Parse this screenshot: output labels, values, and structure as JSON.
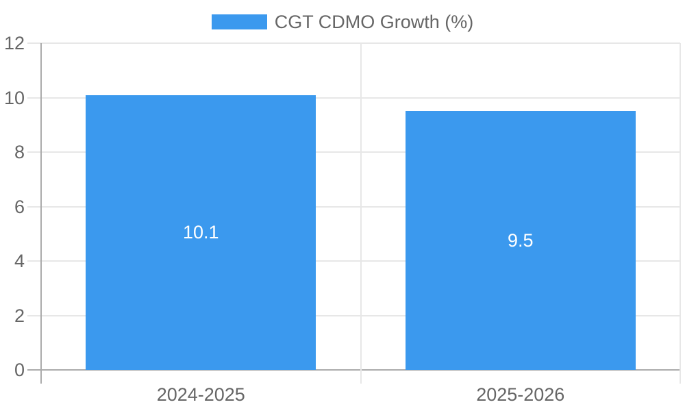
{
  "chart_data": {
    "type": "bar",
    "categories": [
      "2024-2025",
      "2025-2026"
    ],
    "series": [
      {
        "name": "CGT CDMO Growth (%)",
        "values": [
          10.1,
          9.5
        ]
      }
    ],
    "data_labels": [
      "10.1",
      "9.5"
    ],
    "title": "",
    "xlabel": "",
    "ylabel": "",
    "ylim": [
      0,
      12
    ],
    "yticks": [
      0,
      2,
      4,
      6,
      8,
      10,
      12
    ],
    "grid": true,
    "legend_position": "top",
    "colors": {
      "bar": "#3b99ee",
      "grid_light": "#e7e7e7",
      "grid_dark": "#ababab",
      "tick_text": "#666666",
      "bar_label_text": "#ffffff",
      "background": "#ffffff"
    }
  }
}
